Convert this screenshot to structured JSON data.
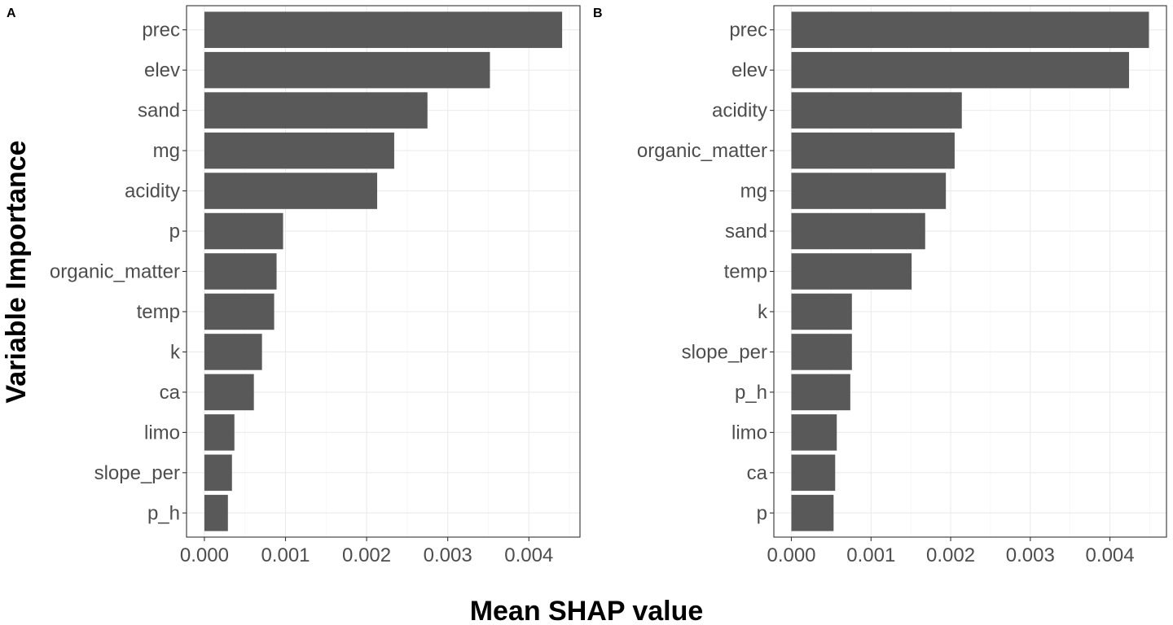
{
  "colors": {
    "bar": "#595959",
    "label": "#4d4d4d",
    "grid": "#ebebeb",
    "border": "#333333"
  },
  "shared": {
    "xlabel": "Mean SHAP value",
    "ylabel": "Variable Importance"
  },
  "chart_data": [
    {
      "type": "bar",
      "orientation": "horizontal",
      "panel": "A",
      "categories": [
        "prec",
        "elev",
        "sand",
        "mg",
        "acidity",
        "p",
        "organic_matter",
        "temp",
        "k",
        "ca",
        "limo",
        "slope_per",
        "p_h"
      ],
      "values": [
        0.00441,
        0.00352,
        0.00275,
        0.00234,
        0.00213,
        0.00097,
        0.00089,
        0.00086,
        0.00071,
        0.00061,
        0.00037,
        0.00034,
        0.00029
      ],
      "xticks": [
        "0.000",
        "0.001",
        "0.002",
        "0.003",
        "0.004"
      ],
      "xtick_values": [
        0,
        0.001,
        0.002,
        0.003,
        0.004
      ],
      "xlim": [
        -0.00022,
        0.00463
      ],
      "grid": true
    },
    {
      "type": "bar",
      "orientation": "horizontal",
      "panel": "B",
      "categories": [
        "prec",
        "elev",
        "acidity",
        "organic_matter",
        "mg",
        "sand",
        "temp",
        "k",
        "slope_per",
        "p_h",
        "limo",
        "ca",
        "p"
      ],
      "values": [
        0.00449,
        0.00424,
        0.00214,
        0.00205,
        0.00194,
        0.00168,
        0.00151,
        0.00076,
        0.00076,
        0.00074,
        0.00057,
        0.00055,
        0.00053
      ],
      "xticks": [
        "0.000",
        "0.001",
        "0.002",
        "0.003",
        "0.004"
      ],
      "xtick_values": [
        0,
        0.001,
        0.002,
        0.003,
        0.004
      ],
      "xlim": [
        -0.00022,
        0.00471
      ],
      "grid": true
    }
  ]
}
